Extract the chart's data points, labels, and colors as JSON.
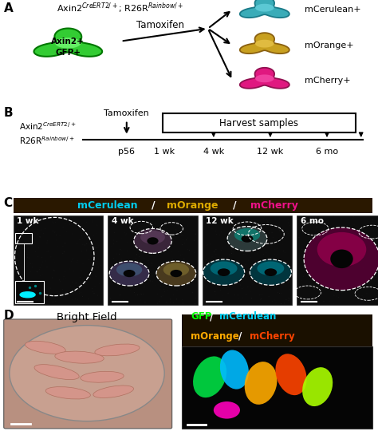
{
  "panel_A": {
    "label": "A",
    "genotype": "Axin2$^{CreERT2/+}$; R26R$^{Rainbow/+}$",
    "cell_label_line1": "Axin2+",
    "cell_label_line2": "GFP+",
    "arrow_label": "Tamoxifen",
    "outcomes": [
      "mCerulean+",
      "mOrange+",
      "mCherry+"
    ],
    "cell_color": "#33cc33",
    "cell_outline": "#007700",
    "cerulean_body": "#3aacb8",
    "cerulean_inner": "#5bc8d4",
    "cerulean_outline": "#1a7a88",
    "orange_body": "#c8a020",
    "orange_inner": "#e0bb40",
    "orange_outline": "#8a6010",
    "cherry_body": "#e01880",
    "cherry_inner": "#f040a0",
    "cherry_outline": "#901050",
    "cerulean_text": "#00ccee",
    "orange_text": "#ddaa00",
    "cherry_text": "#ee1188"
  },
  "panel_B": {
    "label": "B",
    "genotype_line1": "Axin2$^{CreERT2/+}$",
    "genotype_line2": "R26R$^{Rainbow/+}$",
    "tamoxifen_label": "Tamoxifen",
    "harvest_label": "Harvest samples",
    "timepoints": [
      "p56",
      "1 wk",
      "4 wk",
      "12 wk",
      "6 mo"
    ]
  },
  "panel_C": {
    "label": "C",
    "header_bg": "#2a1a0a",
    "cerulean_color": "#00ccee",
    "orange_color": "#ddaa00",
    "cherry_color": "#ee1188",
    "timepoints": [
      "1 wk",
      "4 wk",
      "12 wk",
      "6 mo"
    ],
    "bg_color": "#111111"
  },
  "panel_D": {
    "label": "D",
    "bright_field_label": "Bright Field",
    "header_bg": "#1a1000",
    "gfp_color": "#00ff00",
    "cerulean_color": "#00ccee",
    "orange_color": "#ffaa00",
    "cherry_color": "#ff4400"
  },
  "figure_bg": "#ffffff",
  "label_fontsize": 11,
  "text_fontsize": 8.5,
  "small_fontsize": 7.5
}
